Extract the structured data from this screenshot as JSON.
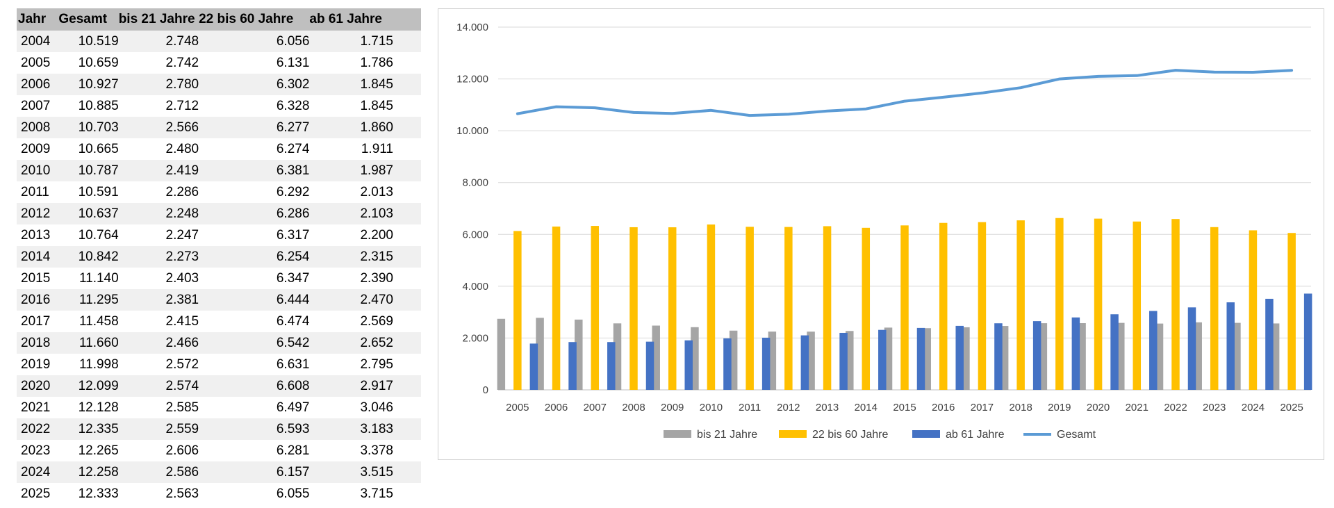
{
  "table": {
    "headers": [
      "Jahr",
      "Gesamt",
      "bis 21 Jahre",
      "22 bis 60 Jahre",
      "ab 61 Jahre"
    ],
    "rows": [
      [
        "2004",
        "10.519",
        "2.748",
        "6.056",
        "1.715"
      ],
      [
        "2005",
        "10.659",
        "2.742",
        "6.131",
        "1.786"
      ],
      [
        "2006",
        "10.927",
        "2.780",
        "6.302",
        "1.845"
      ],
      [
        "2007",
        "10.885",
        "2.712",
        "6.328",
        "1.845"
      ],
      [
        "2008",
        "10.703",
        "2.566",
        "6.277",
        "1.860"
      ],
      [
        "2009",
        "10.665",
        "2.480",
        "6.274",
        "1.911"
      ],
      [
        "2010",
        "10.787",
        "2.419",
        "6.381",
        "1.987"
      ],
      [
        "2011",
        "10.591",
        "2.286",
        "6.292",
        "2.013"
      ],
      [
        "2012",
        "10.637",
        "2.248",
        "6.286",
        "2.103"
      ],
      [
        "2013",
        "10.764",
        "2.247",
        "6.317",
        "2.200"
      ],
      [
        "2014",
        "10.842",
        "2.273",
        "6.254",
        "2.315"
      ],
      [
        "2015",
        "11.140",
        "2.403",
        "6.347",
        "2.390"
      ],
      [
        "2016",
        "11.295",
        "2.381",
        "6.444",
        "2.470"
      ],
      [
        "2017",
        "11.458",
        "2.415",
        "6.474",
        "2.569"
      ],
      [
        "2018",
        "11.660",
        "2.466",
        "6.542",
        "2.652"
      ],
      [
        "2019",
        "11.998",
        "2.572",
        "6.631",
        "2.795"
      ],
      [
        "2020",
        "12.099",
        "2.574",
        "6.608",
        "2.917"
      ],
      [
        "2021",
        "12.128",
        "2.585",
        "6.497",
        "3.046"
      ],
      [
        "2022",
        "12.335",
        "2.559",
        "6.593",
        "3.183"
      ],
      [
        "2023",
        "12.265",
        "2.606",
        "6.281",
        "3.378"
      ],
      [
        "2024",
        "12.258",
        "2.586",
        "6.157",
        "3.515"
      ],
      [
        "2025",
        "12.333",
        "2.563",
        "6.055",
        "3.715"
      ]
    ]
  },
  "chart_data": {
    "type": "bar",
    "title": "",
    "xlabel": "",
    "ylabel": "",
    "categories": [
      "2005",
      "2006",
      "2007",
      "2008",
      "2009",
      "2010",
      "2011",
      "2012",
      "2013",
      "2014",
      "2015",
      "2016",
      "2017",
      "2018",
      "2019",
      "2020",
      "2021",
      "2022",
      "2023",
      "2024",
      "2025"
    ],
    "ylim": [
      0,
      14000
    ],
    "y_ticks": [
      0,
      2000,
      4000,
      6000,
      8000,
      10000,
      12000,
      14000
    ],
    "y_tick_labels": [
      "0",
      "2.000",
      "4.000",
      "6.000",
      "8.000",
      "10.000",
      "12.000",
      "14.000"
    ],
    "grid": true,
    "legend_position": "bottom",
    "series": [
      {
        "name": "bis 21 Jahre",
        "type": "bar",
        "color": "#a5a5a5",
        "values": [
          2742,
          2780,
          2712,
          2566,
          2480,
          2419,
          2286,
          2248,
          2247,
          2273,
          2403,
          2381,
          2415,
          2466,
          2572,
          2574,
          2585,
          2559,
          2606,
          2586,
          2563
        ]
      },
      {
        "name": "22 bis 60 Jahre",
        "type": "bar",
        "color": "#ffc000",
        "values": [
          6131,
          6302,
          6328,
          6277,
          6274,
          6381,
          6292,
          6286,
          6317,
          6254,
          6347,
          6444,
          6474,
          6542,
          6631,
          6608,
          6497,
          6593,
          6281,
          6157,
          6055
        ]
      },
      {
        "name": "ab 61 Jahre",
        "type": "bar",
        "color": "#4472c4",
        "values": [
          1786,
          1845,
          1845,
          1860,
          1911,
          1987,
          2013,
          2103,
          2200,
          2315,
          2390,
          2470,
          2569,
          2652,
          2795,
          2917,
          3046,
          3183,
          3378,
          3515,
          3715
        ]
      },
      {
        "name": "Gesamt",
        "type": "line",
        "color": "#5b9bd5",
        "values": [
          10659,
          10927,
          10885,
          10703,
          10665,
          10787,
          10591,
          10637,
          10764,
          10842,
          11140,
          11295,
          11458,
          11660,
          11998,
          12099,
          12128,
          12335,
          12265,
          12258,
          12333
        ]
      }
    ]
  }
}
